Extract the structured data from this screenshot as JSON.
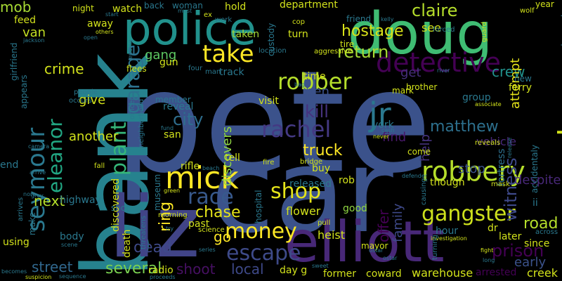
{
  "palette": {
    "purple": "#440154",
    "indigo": "#3b528b",
    "blue": "#31688e",
    "teal": "#21918c",
    "green": "#35b779",
    "lime": "#90d743",
    "yellow": "#fde725"
  },
  "words": [
    {
      "text": "pete",
      "color": "#3b528b",
      "vertical": false
    },
    {
      "text": "car",
      "color": "#3b528b",
      "vertical": false
    },
    {
      "text": "bank",
      "color": "#26828e",
      "vertical": true
    },
    {
      "text": "police",
      "color": "#21918c",
      "vertical": false
    },
    {
      "text": "doug",
      "color": "#3fbc73",
      "vertical": false
    },
    {
      "text": "liz",
      "color": "#414487",
      "vertical": false
    },
    {
      "text": "elliott",
      "color": "#482878",
      "vertical": false
    },
    {
      "text": "mick",
      "color": "#fde725",
      "vertical": false
    },
    {
      "text": "jr",
      "color": "#2a788e",
      "vertical": false
    },
    {
      "text": "audrey",
      "color": "#d2e21b",
      "vertical": true
    },
    {
      "text": "robbery",
      "color": "#b5de2b",
      "vertical": false
    },
    {
      "text": "detective",
      "color": "#440154",
      "vertical": false
    },
    {
      "text": "seymour",
      "color": "#2a788e",
      "vertical": true
    },
    {
      "text": "rachel",
      "color": "#443983",
      "vertical": false
    },
    {
      "text": "robber",
      "color": "#b5de2b",
      "vertical": false
    },
    {
      "text": "take",
      "color": "#fde725",
      "vertical": false
    },
    {
      "text": "gangster",
      "color": "#cde11d",
      "vertical": false
    },
    {
      "text": "money",
      "color": "#fde725",
      "vertical": false
    },
    {
      "text": "shop",
      "color": "#e5e419",
      "vertical": false
    },
    {
      "text": "race",
      "color": "#38598c",
      "vertical": false
    },
    {
      "text": "escape",
      "color": "#3e4a89",
      "vertical": false
    },
    {
      "text": "plant",
      "color": "#35b779",
      "vertical": true
    },
    {
      "text": "garage",
      "color": "#2c728e",
      "vertical": true
    },
    {
      "text": "return",
      "color": "#a8db34",
      "vertical": false
    },
    {
      "text": "eleanor",
      "color": "#22a884",
      "vertical": true
    },
    {
      "text": "chase",
      "color": "#e5e419",
      "vertical": false
    },
    {
      "text": "gang",
      "color": "#5ec962",
      "vertical": false
    },
    {
      "text": "claire",
      "color": "#b5de2b",
      "vertical": false
    },
    {
      "text": "hostage",
      "color": "#d8e219",
      "vertical": false
    },
    {
      "text": "city",
      "color": "#2e6e8e",
      "vertical": false
    },
    {
      "text": "dead",
      "color": "#3e4a89",
      "vertical": false
    },
    {
      "text": "several",
      "color": "#7ad151",
      "vertical": false
    },
    {
      "text": "ring",
      "color": "#fde725",
      "vertical": true
    },
    {
      "text": "witness",
      "color": "#3e4989",
      "vertical": true
    },
    {
      "text": "matthew",
      "color": "#2d708e",
      "vertical": false
    },
    {
      "text": "crew",
      "color": "#21918c",
      "vertical": false
    },
    {
      "text": "road",
      "color": "#b5de2b",
      "vertical": false
    },
    {
      "text": "prison",
      "color": "#440154",
      "vertical": false
    },
    {
      "text": "shoot",
      "color": "#471063",
      "vertical": false
    },
    {
      "text": "local",
      "color": "#3e4989",
      "vertical": false
    },
    {
      "text": "street",
      "color": "#31688e",
      "vertical": false
    },
    {
      "text": "truck",
      "color": "#fde725",
      "vertical": false
    },
    {
      "text": "kill",
      "color": "#46327e",
      "vertical": false
    },
    {
      "text": "find",
      "color": "#48186a",
      "vertical": false
    },
    {
      "text": "stop",
      "color": "#3b528b",
      "vertical": false
    },
    {
      "text": "crime",
      "color": "#d2e21b",
      "vertical": false
    },
    {
      "text": "another",
      "color": "#d2e21b",
      "vertical": false
    },
    {
      "text": "next",
      "color": "#b5de2b",
      "vertical": false
    },
    {
      "text": "give",
      "color": "#d2e21b",
      "vertical": false
    },
    {
      "text": "van",
      "color": "#c2df23",
      "vertical": false
    },
    {
      "text": "mob",
      "color": "#a8db34",
      "vertical": false
    },
    {
      "text": "ben",
      "color": "#3b528b",
      "vertical": false
    },
    {
      "text": "get",
      "color": "#472f7d",
      "vertical": false
    },
    {
      "text": "go",
      "color": "#fde725",
      "vertical": false
    },
    {
      "text": "family",
      "color": "#3e4989",
      "vertical": true
    },
    {
      "text": "offer",
      "color": "#440154",
      "vertical": true
    },
    {
      "text": "help",
      "color": "#46337e",
      "vertical": true
    },
    {
      "text": "discovers",
      "color": "#90d743",
      "vertical": true
    },
    {
      "text": "attempt",
      "color": "#e5e419",
      "vertical": true
    },
    {
      "text": "early",
      "color": "#3b528b",
      "vertical": false
    },
    {
      "text": "vehicle",
      "color": "#482878",
      "vertical": false
    },
    {
      "text": "fortress",
      "color": "#2d708e",
      "vertical": true
    },
    {
      "text": "despite",
      "color": "#482878",
      "vertical": false
    },
    {
      "text": "warehouse",
      "color": "#d2e21b",
      "vertical": false
    },
    {
      "text": "arrested",
      "color": "#440154",
      "vertical": false
    },
    {
      "text": "creek",
      "color": "#d2e21b",
      "vertical": false
    },
    {
      "text": "later",
      "color": "#d2e21b",
      "vertical": false
    },
    {
      "text": "since",
      "color": "#d2e21b",
      "vertical": false
    },
    {
      "text": "heist",
      "color": "#d2e21b",
      "vertical": false
    },
    {
      "text": "former",
      "color": "#d2e21b",
      "vertical": false
    },
    {
      "text": "coward",
      "color": "#d2e21b",
      "vertical": false
    },
    {
      "text": "good",
      "color": "#90d743",
      "vertical": false
    },
    {
      "text": "see",
      "color": "#d2e21b",
      "vertical": false
    },
    {
      "text": "department",
      "color": "#d2e21b",
      "vertical": false
    },
    {
      "text": "hold",
      "color": "#d2e21b",
      "vertical": false
    },
    {
      "text": "custody",
      "color": "#2a788e",
      "vertical": true
    },
    {
      "text": "taken",
      "color": "#a8db34",
      "vertical": false
    },
    {
      "text": "turn",
      "color": "#d2e21b",
      "vertical": false
    },
    {
      "text": "tire",
      "color": "#d2e21b",
      "vertical": false
    },
    {
      "text": "friend",
      "color": "#2a788e",
      "vertical": false
    },
    {
      "text": "work",
      "color": "#2a788e",
      "vertical": false
    },
    {
      "text": "woman",
      "color": "#2a788e",
      "vertical": false
    },
    {
      "text": "back",
      "color": "#2a788e",
      "vertical": false
    },
    {
      "text": "watch",
      "color": "#d2e21b",
      "vertical": false
    },
    {
      "text": "night",
      "color": "#d2e21b",
      "vertical": false
    },
    {
      "text": "away",
      "color": "#d2e21b",
      "vertical": false
    },
    {
      "text": "feed",
      "color": "#d2e21b",
      "vertical": false
    },
    {
      "text": "girlfriend",
      "color": "#2a788e",
      "vertical": true
    },
    {
      "text": "appears",
      "color": "#2a788e",
      "vertical": true
    },
    {
      "text": "end",
      "color": "#2a788e",
      "vertical": false
    },
    {
      "text": "arrives",
      "color": "#2a788e",
      "vertical": true
    },
    {
      "text": "make",
      "color": "#2a788e",
      "vertical": true
    },
    {
      "text": "using",
      "color": "#d2e21b",
      "vertical": false
    },
    {
      "text": "body",
      "color": "#2a788e",
      "vertical": false
    },
    {
      "text": "discovered",
      "color": "#d2e21b",
      "vertical": true
    },
    {
      "text": "death",
      "color": "#d2e21b",
      "vertical": true
    },
    {
      "text": "radio",
      "color": "#d2e21b",
      "vertical": false
    },
    {
      "text": "reveal",
      "color": "#2a788e",
      "vertical": false
    },
    {
      "text": "member",
      "color": "#2a788e",
      "vertical": false
    },
    {
      "text": "san",
      "color": "#d2e21b",
      "vertical": false
    },
    {
      "text": "rifle",
      "color": "#d2e21b",
      "vertical": false
    },
    {
      "text": "tell",
      "color": "#d2e21b",
      "vertical": false
    },
    {
      "text": "buy",
      "color": "#d2e21b",
      "vertical": false
    },
    {
      "text": "visit",
      "color": "#d2e21b",
      "vertical": false
    },
    {
      "text": "time",
      "color": "#d2e21b",
      "vertical": false
    },
    {
      "text": "released",
      "color": "#2a788e",
      "vertical": false
    },
    {
      "text": "flower",
      "color": "#d2e21b",
      "vertical": false
    },
    {
      "text": "rob",
      "color": "#d2e21b",
      "vertical": false
    },
    {
      "text": "mark",
      "color": "#d2e21b",
      "vertical": false
    },
    {
      "text": "come",
      "color": "#d2e21b",
      "vertical": false
    },
    {
      "text": "though",
      "color": "#d2e21b",
      "vertical": false
    },
    {
      "text": "group",
      "color": "#2a788e",
      "vertical": false
    },
    {
      "text": "hour",
      "color": "#2a788e",
      "vertical": false
    },
    {
      "text": "dr",
      "color": "#d2e21b",
      "vertical": false
    },
    {
      "text": "ferry",
      "color": "#d2e21b",
      "vertical": false
    },
    {
      "text": "new",
      "color": "#2a788e",
      "vertical": false
    },
    {
      "text": "demand",
      "color": "#2a788e",
      "vertical": true
    },
    {
      "text": "accidentaly",
      "color": "#2a788e",
      "vertical": true
    },
    {
      "text": "gun",
      "color": "#d2e21b",
      "vertical": false
    },
    {
      "text": "flees",
      "color": "#d2e21b",
      "vertical": false
    },
    {
      "text": "track",
      "color": "#2a788e",
      "vertical": false
    },
    {
      "text": "shot",
      "color": "#2a788e",
      "vertical": false
    },
    {
      "text": "highway",
      "color": "#2a788e",
      "vertical": false
    },
    {
      "text": "past",
      "color": "#d2e21b",
      "vertical": false
    },
    {
      "text": "hospital",
      "color": "#2a788e",
      "vertical": true
    },
    {
      "text": "museum",
      "color": "#2a788e",
      "vertical": true
    },
    {
      "text": "mayor",
      "color": "#d2e21b",
      "vertical": false
    },
    {
      "text": "day g",
      "color": "#d2e21b",
      "vertical": false
    },
    {
      "text": "officer",
      "color": "#2a788e",
      "vertical": true
    },
    {
      "text": "neighborhood",
      "color": "#2a788e",
      "vertical": true
    },
    {
      "text": "threatens",
      "color": "#2a788e",
      "vertical": true
    },
    {
      "text": "science",
      "color": "#d2e21b",
      "vertical": false
    },
    {
      "text": "morning",
      "color": "#d2e21b",
      "vertical": false
    },
    {
      "text": "fire",
      "color": "#d2e21b",
      "vertical": false
    },
    {
      "text": "bridge",
      "color": "#d2e21b",
      "vertical": false
    },
    {
      "text": "york",
      "color": "#2a788e",
      "vertical": false
    },
    {
      "text": "brother",
      "color": "#d2e21b",
      "vertical": false
    },
    {
      "text": "start",
      "color": "#2a788e",
      "vertical": false
    },
    {
      "text": "ex",
      "color": "#d2e21b",
      "vertical": false
    },
    {
      "text": "cop",
      "color": "#d2e21b",
      "vertical": false
    },
    {
      "text": "kelly",
      "color": "#2a788e",
      "vertical": false
    },
    {
      "text": "year",
      "color": "#d2e21b",
      "vertical": false
    },
    {
      "text": "forced",
      "color": "#2a788e",
      "vertical": false
    },
    {
      "text": "wolf",
      "color": "#d2e21b",
      "vertical": false
    },
    {
      "text": "guard",
      "color": "#d2e21b",
      "vertical": true
    },
    {
      "text": "location",
      "color": "#2a788e",
      "vertical": false
    },
    {
      "text": "aggressive",
      "color": "#d2e21b",
      "vertical": false
    },
    {
      "text": "four",
      "color": "#2a788e",
      "vertical": false
    },
    {
      "text": "man",
      "color": "#2a788e",
      "vertical": false
    },
    {
      "text": "bag",
      "color": "#2a788e",
      "vertical": false
    },
    {
      "text": "river",
      "color": "#2a788e",
      "vertical": false
    },
    {
      "text": "associate",
      "color": "#d2e21b",
      "vertical": false
    },
    {
      "text": "reveals",
      "color": "#d2e21b",
      "vertical": false
    },
    {
      "text": "release",
      "color": "#2a788e",
      "vertical": true
    },
    {
      "text": "mask",
      "color": "#d2e21b",
      "vertical": false
    },
    {
      "text": "defender",
      "color": "#2a788e",
      "vertical": false
    },
    {
      "text": "cash",
      "color": "#2a788e",
      "vertical": false
    },
    {
      "text": "never",
      "color": "#d2e21b",
      "vertical": false
    },
    {
      "text": "causing",
      "color": "#2a788e",
      "vertical": true
    },
    {
      "text": "pull",
      "color": "#d2e21b",
      "vertical": false
    },
    {
      "text": "ostar",
      "color": "#2a788e",
      "vertical": false
    },
    {
      "text": "investigation",
      "color": "#d2e21b",
      "vertical": false
    },
    {
      "text": "turning",
      "color": "#2a788e",
      "vertical": true
    },
    {
      "text": "fight",
      "color": "#d2e21b",
      "vertical": false
    },
    {
      "text": "long",
      "color": "#2a788e",
      "vertical": false
    },
    {
      "text": "across",
      "color": "#2a788e",
      "vertical": false
    },
    {
      "text": "ii",
      "color": "#2a788e",
      "vertical": false
    },
    {
      "text": "green",
      "color": "#d2e21b",
      "vertical": false
    },
    {
      "text": "try",
      "color": "#2a788e",
      "vertical": false
    },
    {
      "text": "series",
      "color": "#2a788e",
      "vertical": false
    },
    {
      "text": "proceeds",
      "color": "#2a788e",
      "vertical": false
    },
    {
      "text": "sequence",
      "color": "#2a788e",
      "vertical": false
    },
    {
      "text": "suspicion",
      "color": "#d2e21b",
      "vertical": false
    },
    {
      "text": "becomes",
      "color": "#2a788e",
      "vertical": false
    },
    {
      "text": "scene",
      "color": "#2a788e",
      "vertical": false
    },
    {
      "text": "people",
      "color": "#2a788e",
      "vertical": false
    },
    {
      "text": "occurs",
      "color": "#2a788e",
      "vertical": false
    },
    {
      "text": "open",
      "color": "#2a788e",
      "vertical": false
    },
    {
      "text": "others",
      "color": "#d2e21b",
      "vertical": false
    },
    {
      "text": "jackson",
      "color": "#2a788e",
      "vertical": false
    },
    {
      "text": "ending",
      "color": "#2a788e",
      "vertical": true
    },
    {
      "text": "fund",
      "color": "#2a788e",
      "vertical": false
    },
    {
      "text": "beach",
      "color": "#2a788e",
      "vertical": false
    },
    {
      "text": "camera",
      "color": "#2a788e",
      "vertical": false
    },
    {
      "text": "fall",
      "color": "#d2e21b",
      "vertical": false
    },
    {
      "text": "arrive",
      "color": "#2a788e",
      "vertical": false
    },
    {
      "text": "grey",
      "color": "#2a788e",
      "vertical": false
    },
    {
      "text": "must",
      "color": "#2a788e",
      "vertical": false
    },
    {
      "text": "nora",
      "color": "#2a788e",
      "vertical": false
    },
    {
      "text": "sweet",
      "color": "#2a788e",
      "vertical": false
    },
    {
      "text": "ostar",
      "color": "#2a788e",
      "vertical": false
    }
  ]
}
